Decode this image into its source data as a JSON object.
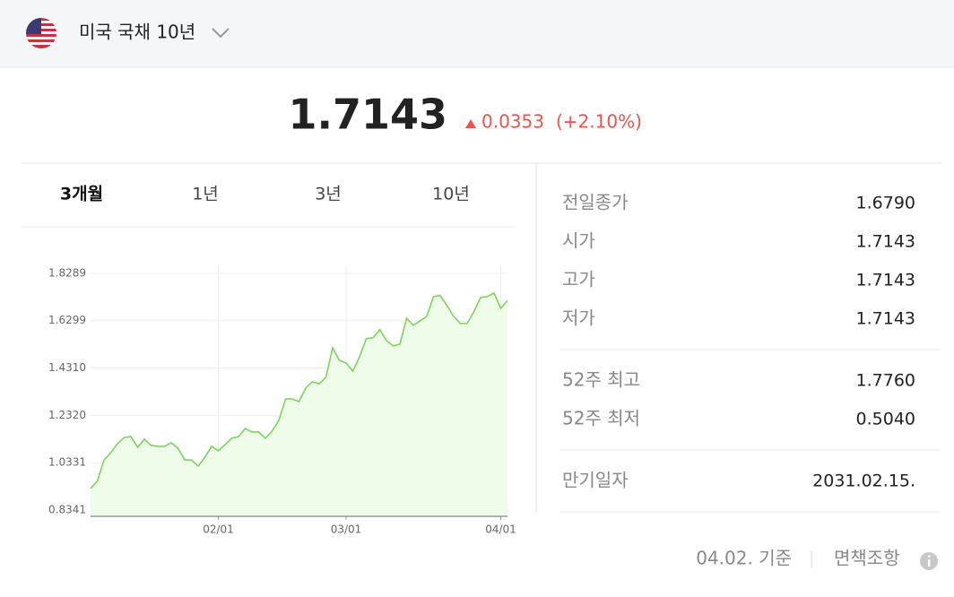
{
  "header": {
    "title": "미국 국채 10년"
  },
  "quote": {
    "price": "1.7143",
    "change": "0.0353",
    "change_pct": "(+2.10%)",
    "direction": "up"
  },
  "tabs": {
    "items": [
      "3개월",
      "1년",
      "3년",
      "10년"
    ],
    "active": 0
  },
  "chart_data": {
    "type": "line",
    "color": "#7ed35f",
    "grid": true,
    "categories": [
      null,
      null,
      null,
      null,
      null,
      null,
      null,
      null,
      null,
      null,
      null,
      null,
      null,
      null,
      null,
      null,
      null,
      null,
      null,
      "02/01",
      null,
      null,
      null,
      null,
      null,
      null,
      null,
      null,
      null,
      null,
      null,
      null,
      null,
      null,
      null,
      null,
      null,
      null,
      "03/01",
      null,
      null,
      null,
      null,
      null,
      null,
      null,
      null,
      null,
      null,
      null,
      null,
      null,
      null,
      null,
      null,
      null,
      null,
      null,
      null,
      null,
      null,
      "04/01",
      null
    ],
    "values": [
      0.925,
      0.955,
      1.045,
      1.075,
      1.113,
      1.139,
      1.143,
      1.098,
      1.132,
      1.106,
      1.102,
      1.102,
      1.117,
      1.094,
      1.045,
      1.045,
      1.019,
      1.056,
      1.102,
      1.083,
      1.109,
      1.136,
      1.143,
      1.177,
      1.162,
      1.162,
      1.136,
      1.166,
      1.211,
      1.301,
      1.301,
      1.29,
      1.347,
      1.373,
      1.365,
      1.392,
      1.516,
      1.463,
      1.452,
      1.418,
      1.478,
      1.554,
      1.558,
      1.592,
      1.546,
      1.524,
      1.531,
      1.64,
      1.61,
      1.629,
      1.648,
      1.731,
      1.735,
      1.693,
      1.648,
      1.618,
      1.618,
      1.667,
      1.727,
      1.731,
      1.746,
      1.682,
      1.714
    ],
    "ylim": [
      0.808,
      1.866
    ],
    "yticks": [
      1.8289,
      1.6299,
      {
        "value": 1.431,
        "label": "1.4310"
      },
      {
        "value": 1.232,
        "label": "1.2320"
      },
      1.0331,
      0.8341
    ]
  },
  "stats": {
    "groups": [
      [
        {
          "label": "전일종가",
          "value": "1.6790"
        },
        {
          "label": "시가",
          "value": "1.7143"
        },
        {
          "label": "고가",
          "value": "1.7143"
        },
        {
          "label": "저가",
          "value": "1.7143"
        }
      ],
      [
        {
          "label": "52주 최고",
          "value": "1.7760"
        },
        {
          "label": "52주 최저",
          "value": "0.5040"
        }
      ],
      [
        {
          "label": "만기일자",
          "value": "2031.02.15."
        }
      ]
    ]
  },
  "footer": {
    "date": "04.02. 기준",
    "disclaimer": "면책조항"
  }
}
